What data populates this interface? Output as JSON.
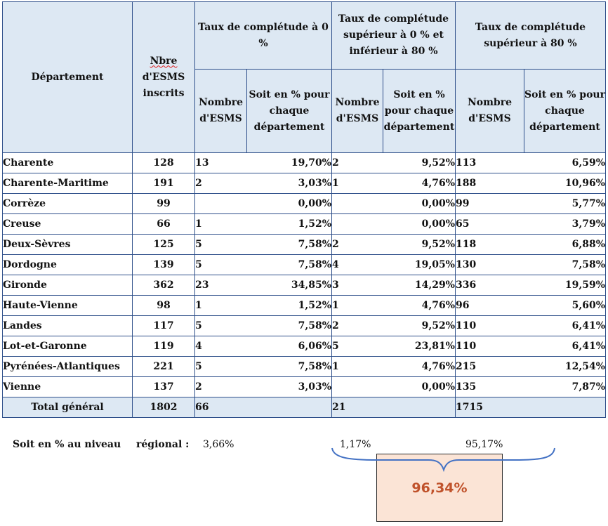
{
  "headers": {
    "departement": "Département",
    "nbre_l1": "Nbre",
    "nbre_l2": "d'ESMS",
    "nbre_l3": "inscrits",
    "group1": "Taux de complétude à 0 %",
    "group2": "Taux de complétude supérieur à 0 % et inférieur à 80 %",
    "group3": "Taux de complétude supérieur  à 80 %",
    "nombre": "Nombre d'ESMS",
    "soit1": "Soit en % pour chaque département",
    "soit2": "Soit en % pour chaque département",
    "soit3": "Soit en % pour chaque département"
  },
  "rows": [
    {
      "dept": "Charente",
      "nbre": "128",
      "n0": "13",
      "p0": "19,70%",
      "n1": "2",
      "p1": "9,52%",
      "n2": "113",
      "p2": "6,59%"
    },
    {
      "dept": "Charente-Maritime",
      "nbre": "191",
      "n0": "2",
      "p0": "3,03%",
      "n1": "1",
      "p1": "4,76%",
      "n2": "188",
      "p2": "10,96%"
    },
    {
      "dept": "Corrèze",
      "nbre": "99",
      "n0": "",
      "p0": "0,00%",
      "n1": "",
      "p1": "0,00%",
      "n2": "99",
      "p2": "5,77%"
    },
    {
      "dept": "Creuse",
      "nbre": "66",
      "n0": "1",
      "p0": "1,52%",
      "n1": "",
      "p1": "0,00%",
      "n2": "65",
      "p2": "3,79%"
    },
    {
      "dept": "Deux-Sèvres",
      "nbre": "125",
      "n0": "5",
      "p0": "7,58%",
      "n1": "2",
      "p1": "9,52%",
      "n2": "118",
      "p2": "6,88%"
    },
    {
      "dept": "Dordogne",
      "nbre": "139",
      "n0": "5",
      "p0": "7,58%",
      "n1": "4",
      "p1": "19,05%",
      "n2": "130",
      "p2": "7,58%"
    },
    {
      "dept": "Gironde",
      "nbre": "362",
      "n0": "23",
      "p0": "34,85%",
      "n1": "3",
      "p1": "14,29%",
      "n2": "336",
      "p2": "19,59%"
    },
    {
      "dept": "Haute-Vienne",
      "nbre": "98",
      "n0": "1",
      "p0": "1,52%",
      "n1": "1",
      "p1": "4,76%",
      "n2": "96",
      "p2": "5,60%"
    },
    {
      "dept": "Landes",
      "nbre": "117",
      "n0": "5",
      "p0": "7,58%",
      "n1": "2",
      "p1": "9,52%",
      "n2": "110",
      "p2": "6,41%"
    },
    {
      "dept": "Lot-et-Garonne",
      "nbre": "119",
      "n0": "4",
      "p0": "6,06%",
      "n1": "5",
      "p1": "23,81%",
      "n2": "110",
      "p2": "6,41%"
    },
    {
      "dept": "Pyrénées-Atlantiques",
      "nbre": "221",
      "n0": "5",
      "p0": "7,58%",
      "n1": "1",
      "p1": "4,76%",
      "n2": "215",
      "p2": "12,54%"
    },
    {
      "dept": "Vienne",
      "nbre": "137",
      "n0": "2",
      "p0": "3,03%",
      "n1": "",
      "p1": "0,00%",
      "n2": "135",
      "p2": "7,87%"
    }
  ],
  "total": {
    "label": "Total général",
    "nbre": "1802",
    "n0": "66",
    "n1": "21",
    "n2": "1715"
  },
  "footer": {
    "label_a": "Soit en % au niveau",
    "label_b": "régional :",
    "p0": "3,66%",
    "p1": "1,17%",
    "p2": "95,17%",
    "combined": "96,34%"
  },
  "colors": {
    "header_bg": "#dde8f3",
    "border": "#2e4f8a",
    "brace": "#4472c4",
    "result_bg": "#fbe4d6",
    "result_text": "#c0522b"
  }
}
